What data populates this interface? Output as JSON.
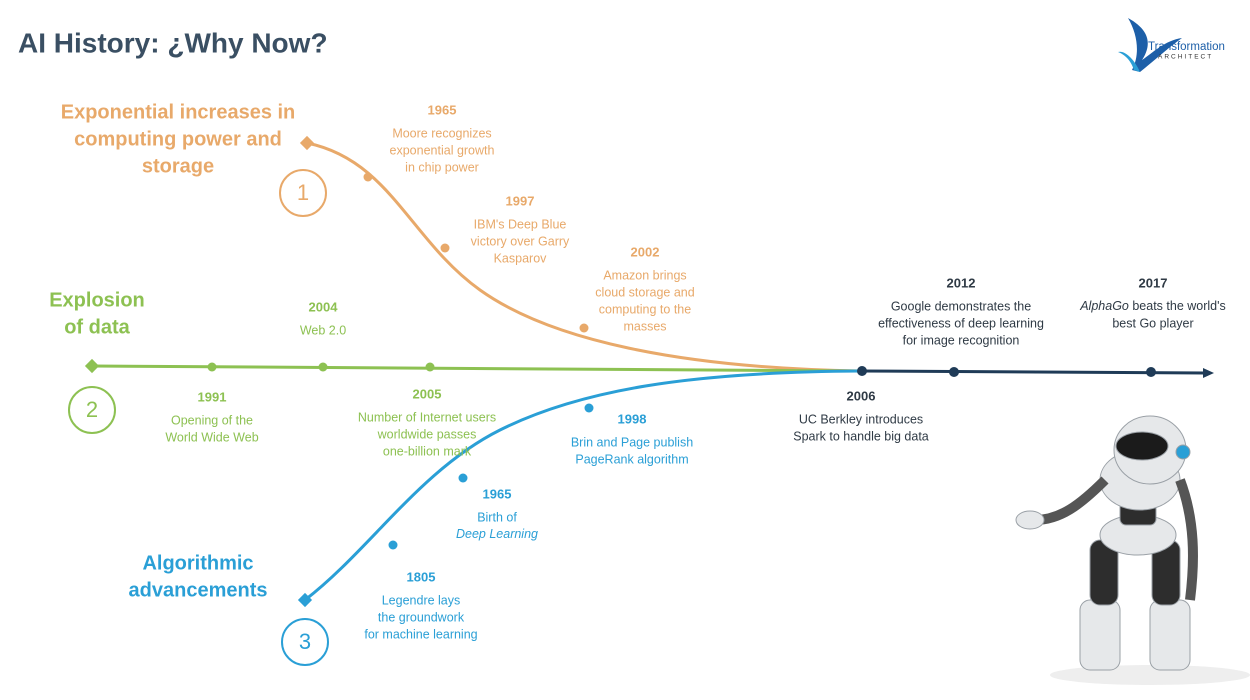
{
  "header": {
    "title": "AI History: ¿Why Now?"
  },
  "logo": {
    "name": "Transformation",
    "tagline": "ARCHITECT"
  },
  "streams": [
    {
      "label": [
        "Exponential increases in",
        "computing power and",
        "storage"
      ],
      "number": 1,
      "color": "#e8a96a",
      "events": [
        {
          "year": "1965",
          "lines": [
            "Moore recognizes",
            "exponential growth",
            "in chip power"
          ]
        },
        {
          "year": "1997",
          "lines": [
            "IBM's Deep Blue",
            "victory over Garry",
            "Kasparov"
          ]
        },
        {
          "year": "2002",
          "lines": [
            "Amazon brings",
            "cloud storage and",
            "computing to the",
            "masses"
          ]
        }
      ]
    },
    {
      "label": [
        "Explosion",
        "of data"
      ],
      "number": 2,
      "color": "#8dc152",
      "events": [
        {
          "year": "1991",
          "lines": [
            "Opening of the",
            "World Wide Web"
          ]
        },
        {
          "year": "2004",
          "lines": [
            "Web 2.0"
          ]
        },
        {
          "year": "2005",
          "lines": [
            "Number of Internet users",
            "worldwide passes",
            "one-billion mark"
          ]
        }
      ]
    },
    {
      "label": [
        "Algorithmic",
        "advancements"
      ],
      "number": 3,
      "color": "#2a9fd6",
      "events": [
        {
          "year": "1805",
          "lines": [
            "Legendre lays",
            "the groundwork",
            "for machine learning"
          ]
        },
        {
          "year": "1965",
          "lines": [
            "Birth of",
            {
              "italic": "Deep Learning"
            }
          ]
        },
        {
          "year": "1998",
          "lines": [
            "Brin and Page publish",
            "PageRank algorithm"
          ]
        }
      ]
    }
  ],
  "shared_events": {
    "color": "#1f3b57",
    "events": [
      {
        "year": "2006",
        "lines": [
          "UC Berkley introduces",
          "Spark to handle big data"
        ]
      },
      {
        "year": "2012",
        "lines": [
          "Google demonstrates the",
          "effectiveness of deep learning",
          "for image recognition"
        ]
      },
      {
        "year": "2017",
        "lines": [
          {
            "italic": "AlphaGo",
            "text": " beats the world's"
          },
          "best Go player"
        ]
      }
    ]
  }
}
